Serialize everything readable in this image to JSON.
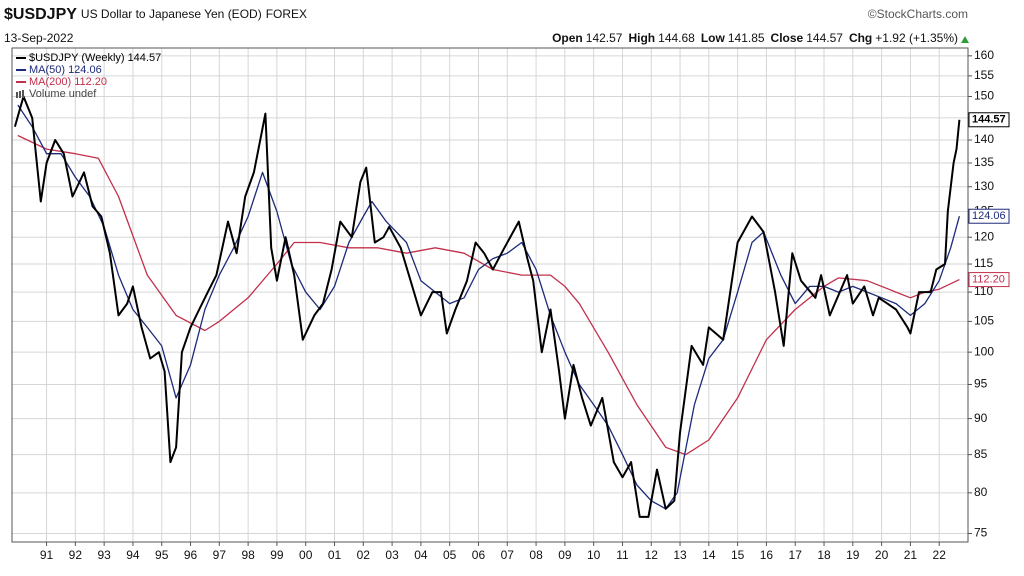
{
  "chart_data": {
    "type": "line",
    "title": "$USDJPY",
    "subtitle": "US Dollar to Japanese Yen (EOD)",
    "exchange": "FOREX",
    "source": "©StockCharts.com",
    "date": "13-Sep-2022",
    "quote": [
      {
        "label": "Open",
        "value": "142.57"
      },
      {
        "label": "High",
        "value": "144.68"
      },
      {
        "label": "Low",
        "value": "141.85"
      },
      {
        "label": "Close",
        "value": "144.57"
      },
      {
        "label": "Chg",
        "value": "+1.92 (+1.35%)"
      }
    ],
    "volume_label": "Volume undef",
    "log_scale": true,
    "grid": true,
    "xlim": [
      1989.8,
      2023.0
    ],
    "ylim": [
      74,
      162
    ],
    "xticks": [
      {
        "value": 1991,
        "label": "91"
      },
      {
        "value": 1992,
        "label": "92"
      },
      {
        "value": 1993,
        "label": "93"
      },
      {
        "value": 1994,
        "label": "94"
      },
      {
        "value": 1995,
        "label": "95"
      },
      {
        "value": 1996,
        "label": "96"
      },
      {
        "value": 1997,
        "label": "97"
      },
      {
        "value": 1998,
        "label": "98"
      },
      {
        "value": 1999,
        "label": "99"
      },
      {
        "value": 2000,
        "label": "00"
      },
      {
        "value": 2001,
        "label": "01"
      },
      {
        "value": 2002,
        "label": "02"
      },
      {
        "value": 2003,
        "label": "03"
      },
      {
        "value": 2004,
        "label": "04"
      },
      {
        "value": 2005,
        "label": "05"
      },
      {
        "value": 2006,
        "label": "06"
      },
      {
        "value": 2007,
        "label": "07"
      },
      {
        "value": 2008,
        "label": "08"
      },
      {
        "value": 2009,
        "label": "09"
      },
      {
        "value": 2010,
        "label": "10"
      },
      {
        "value": 2011,
        "label": "11"
      },
      {
        "value": 2012,
        "label": "12"
      },
      {
        "value": 2013,
        "label": "13"
      },
      {
        "value": 2014,
        "label": "14"
      },
      {
        "value": 2015,
        "label": "15"
      },
      {
        "value": 2016,
        "label": "16"
      },
      {
        "value": 2017,
        "label": "17"
      },
      {
        "value": 2018,
        "label": "18"
      },
      {
        "value": 2019,
        "label": "19"
      },
      {
        "value": 2020,
        "label": "20"
      },
      {
        "value": 2021,
        "label": "21"
      },
      {
        "value": 2022,
        "label": "22"
      }
    ],
    "yticks": [
      75,
      80,
      85,
      90,
      95,
      100,
      105,
      110,
      115,
      120,
      125,
      130,
      135,
      140,
      145,
      150,
      155,
      160
    ],
    "series": [
      {
        "name": "$USDJPY (Weekly)",
        "last_label": "144.57",
        "color": "#000000",
        "width": 2,
        "x": [
          1989.9,
          1990.2,
          1990.5,
          1990.8,
          1991.0,
          1991.3,
          1991.6,
          1991.9,
          1992.3,
          1992.6,
          1992.9,
          1993.2,
          1993.5,
          1993.8,
          1994.0,
          1994.3,
          1994.6,
          1994.9,
          1995.1,
          1995.3,
          1995.5,
          1995.7,
          1996.0,
          1996.3,
          1996.6,
          1996.9,
          1997.3,
          1997.6,
          1997.9,
          1998.2,
          1998.6,
          1998.8,
          1999.0,
          1999.3,
          1999.6,
          1999.9,
          2000.3,
          2000.6,
          2000.9,
          2001.2,
          2001.6,
          2001.9,
          2002.1,
          2002.4,
          2002.7,
          2002.9,
          2003.3,
          2003.7,
          2004.0,
          2004.4,
          2004.7,
          2004.9,
          2005.2,
          2005.6,
          2005.9,
          2006.2,
          2006.5,
          2006.9,
          2007.4,
          2007.7,
          2007.9,
          2008.2,
          2008.5,
          2008.8,
          2009.0,
          2009.3,
          2009.6,
          2009.9,
          2010.3,
          2010.7,
          2011.0,
          2011.3,
          2011.6,
          2011.9,
          2012.2,
          2012.5,
          2012.8,
          2013.0,
          2013.4,
          2013.8,
          2014.0,
          2014.5,
          2014.8,
          2015.0,
          2015.5,
          2015.9,
          2016.3,
          2016.6,
          2016.9,
          2017.2,
          2017.7,
          2017.9,
          2018.2,
          2018.8,
          2019.0,
          2019.4,
          2019.7,
          2019.9,
          2020.2,
          2020.5,
          2020.9,
          2021.0,
          2021.3,
          2021.7,
          2021.9,
          2022.2,
          2022.3,
          2022.5,
          2022.6,
          2022.7
        ],
        "values": [
          143,
          150,
          145,
          127,
          135,
          140,
          137,
          128,
          133,
          126,
          124,
          117,
          106,
          108,
          111,
          104,
          99,
          100,
          97,
          84,
          86,
          100,
          104,
          107,
          110,
          113,
          123,
          117,
          128,
          133,
          146,
          118,
          112,
          120,
          113,
          102,
          106,
          108,
          114,
          123,
          120,
          131,
          134,
          119,
          120,
          122,
          118,
          111,
          106,
          110,
          110,
          103,
          107,
          112,
          119,
          117,
          114,
          118,
          123,
          116,
          112,
          100,
          107,
          97,
          90,
          98,
          93,
          89,
          93,
          84,
          82,
          84,
          77,
          77,
          83,
          78,
          79,
          88,
          101,
          98,
          104,
          102,
          112,
          119,
          124,
          121,
          110,
          101,
          117,
          112,
          109,
          113,
          106,
          113,
          108,
          111,
          106,
          109,
          108,
          107,
          104,
          103,
          110,
          110,
          114,
          115,
          125,
          135,
          138,
          144.57
        ]
      },
      {
        "name": "MA(50)",
        "last_label": "124.06",
        "color": "#1c2a7a",
        "width": 1.3,
        "x": [
          1990.0,
          1990.5,
          1991.0,
          1991.5,
          1992.0,
          1992.5,
          1993.0,
          1993.5,
          1994.0,
          1994.5,
          1995.0,
          1995.5,
          1996.0,
          1996.5,
          1997.0,
          1997.5,
          1998.0,
          1998.5,
          1999.0,
          1999.5,
          2000.0,
          2000.5,
          2001.0,
          2001.5,
          2002.0,
          2002.3,
          2002.8,
          2003.5,
          2004.0,
          2004.5,
          2005.0,
          2005.5,
          2006.0,
          2006.5,
          2007.0,
          2007.5,
          2008.0,
          2008.5,
          2009.0,
          2009.5,
          2010.0,
          2010.5,
          2011.0,
          2011.5,
          2012.0,
          2012.5,
          2012.9,
          2013.5,
          2014.0,
          2014.5,
          2015.0,
          2015.5,
          2015.9,
          2016.5,
          2017.0,
          2017.5,
          2018.0,
          2018.5,
          2019.0,
          2019.5,
          2020.0,
          2020.5,
          2021.0,
          2021.5,
          2022.0,
          2022.4,
          2022.7
        ],
        "values": [
          148,
          143,
          137,
          137,
          132,
          128,
          122,
          113,
          107,
          104,
          101,
          93,
          98,
          107,
          113,
          118,
          124,
          133,
          125,
          115,
          110,
          107,
          111,
          119,
          124,
          127,
          123,
          119,
          112,
          110,
          108,
          109,
          114,
          116,
          117,
          119,
          114,
          106,
          100,
          95,
          92,
          89,
          85,
          81,
          79,
          78,
          80,
          92,
          99,
          102,
          110,
          119,
          121,
          113,
          108,
          111,
          111,
          110,
          111,
          110,
          109,
          108,
          106,
          108,
          112,
          118,
          124.06
        ]
      },
      {
        "name": "MA(200)",
        "last_label": "112.20",
        "color": "#c2304c",
        "width": 1.3,
        "x": [
          1990.0,
          1991.0,
          1992.0,
          1992.8,
          1993.5,
          1994.5,
          1995.5,
          1996.5,
          1997.0,
          1998.0,
          1999.0,
          1999.6,
          2000.5,
          2001.5,
          2002.5,
          2003.5,
          2004.5,
          2005.5,
          2006.5,
          2007.5,
          2008.5,
          2009.0,
          2009.5,
          2010.5,
          2011.5,
          2012.5,
          2013.2,
          2014.0,
          2015.0,
          2016.0,
          2017.0,
          2018.0,
          2018.5,
          2019.5,
          2020.5,
          2021.0,
          2021.5,
          2022.0,
          2022.7
        ],
        "values": [
          141,
          138,
          137,
          136,
          128,
          113,
          106,
          103.5,
          105,
          109,
          115,
          119,
          119,
          118,
          118,
          117,
          118,
          117,
          114,
          113,
          113,
          111,
          108,
          100,
          92,
          86,
          85,
          87,
          93,
          102,
          107,
          111,
          112.5,
          112,
          110,
          109,
          110,
          110.5,
          112.2
        ]
      }
    ]
  }
}
